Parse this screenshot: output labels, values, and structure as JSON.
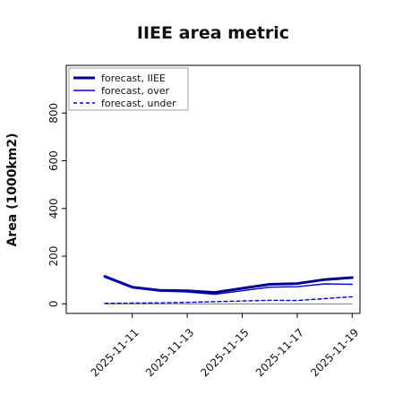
{
  "chart_data": {
    "type": "line",
    "title": "IIEE area metric",
    "xlabel": "",
    "ylabel": "Area (1000km2)",
    "x": [
      "2025-11-10",
      "2025-11-11",
      "2025-11-12",
      "2025-11-13",
      "2025-11-14",
      "2025-11-15",
      "2025-11-16",
      "2025-11-17",
      "2025-11-18",
      "2025-11-19"
    ],
    "xticks": [
      "2025-11-11",
      "2025-11-13",
      "2025-11-15",
      "2025-11-17",
      "2025-11-19"
    ],
    "highlight_tick": "2025-11-11",
    "yticks": [
      "0",
      "200",
      "400",
      "600",
      "800"
    ],
    "ylim": [
      -40,
      1000
    ],
    "series": [
      {
        "name": "forecast, IIEE",
        "style": "thick-solid",
        "color": "#00008b",
        "values": [
          115,
          70,
          57,
          55,
          48,
          65,
          82,
          85,
          102,
          110
        ]
      },
      {
        "name": "forecast, over",
        "style": "solid",
        "color": "#0000cd",
        "values": [
          112,
          68,
          54,
          50,
          40,
          55,
          70,
          72,
          84,
          82
        ]
      },
      {
        "name": "forecast, under",
        "style": "dashed",
        "color": "#0000cd",
        "values": [
          2,
          3,
          4,
          6,
          9,
          12,
          15,
          14,
          22,
          30
        ]
      }
    ],
    "zero_line": true,
    "grid": false,
    "legend_position": "top-left"
  }
}
